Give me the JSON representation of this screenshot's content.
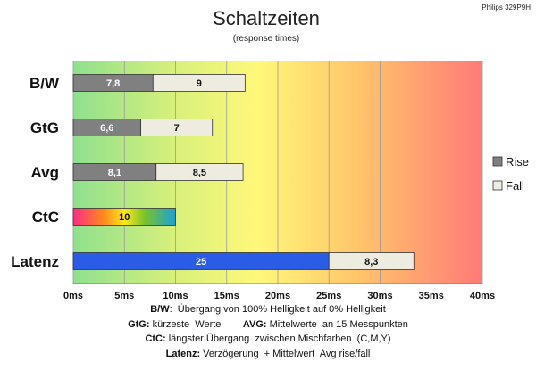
{
  "title": "Schaltzeiten",
  "subtitle": "(response times)",
  "corner_label": "Philips 329P9H",
  "chart_data": {
    "type": "bar",
    "orientation": "horizontal",
    "stacked": true,
    "title": "Schaltzeiten",
    "subtitle": "(response times)",
    "categories": [
      "B/W",
      "GtG",
      "Avg",
      "CtC",
      "Latenz"
    ],
    "xlim": [
      0,
      40
    ],
    "x_tick_step": 5,
    "x_tick_labels": [
      "0ms",
      "5ms",
      "10ms",
      "15ms",
      "20ms",
      "25ms",
      "30ms",
      "35ms",
      "40ms"
    ],
    "grid": "vertical",
    "background": "gradient green-yellow-orange-red",
    "legend_position": "right",
    "series": [
      {
        "name": "Rise",
        "values": [
          7.8,
          6.6,
          8.1,
          null,
          null
        ],
        "color": "#808080",
        "labels": [
          "7,8",
          "6,6",
          "8,1",
          "",
          ""
        ]
      },
      {
        "name": "Fall",
        "values": [
          9,
          7,
          8.5,
          null,
          null
        ],
        "color": "#eeece1",
        "labels": [
          "9",
          "7",
          "8,5",
          "",
          ""
        ]
      }
    ],
    "extra_bars": [
      {
        "category": "CtC",
        "start": 0,
        "value": 10,
        "label": "10",
        "style": "rainbow"
      },
      {
        "category": "Latenz",
        "start": 0,
        "value": 25,
        "label": "25",
        "color": "#2b5ce6"
      },
      {
        "category": "Latenz",
        "start": 25,
        "value": 8.3,
        "label": "8,3",
        "color": "#eeece1"
      }
    ]
  },
  "footnotes": [
    {
      "parts": [
        {
          "b": "B/W"
        },
        {
          "t": ":  Übergang von 100% Helligkeit auf 0% Helligkeit"
        }
      ]
    },
    {
      "parts": [
        {
          "b": "GtG:"
        },
        {
          "t": " kürzeste  Werte        "
        },
        {
          "b": "AVG:"
        },
        {
          "t": " Mittelwerte  an 15 Messpunkten"
        }
      ]
    },
    {
      "parts": [
        {
          "b": "CtC:"
        },
        {
          "t": " längster Übergang  zwischen Mischfarben  (C,M,Y)"
        }
      ]
    },
    {
      "parts": [
        {
          "b": "Latenz:"
        },
        {
          "t": " Verzögerung  + Mittelwert  Avg rise/fall"
        }
      ]
    }
  ]
}
